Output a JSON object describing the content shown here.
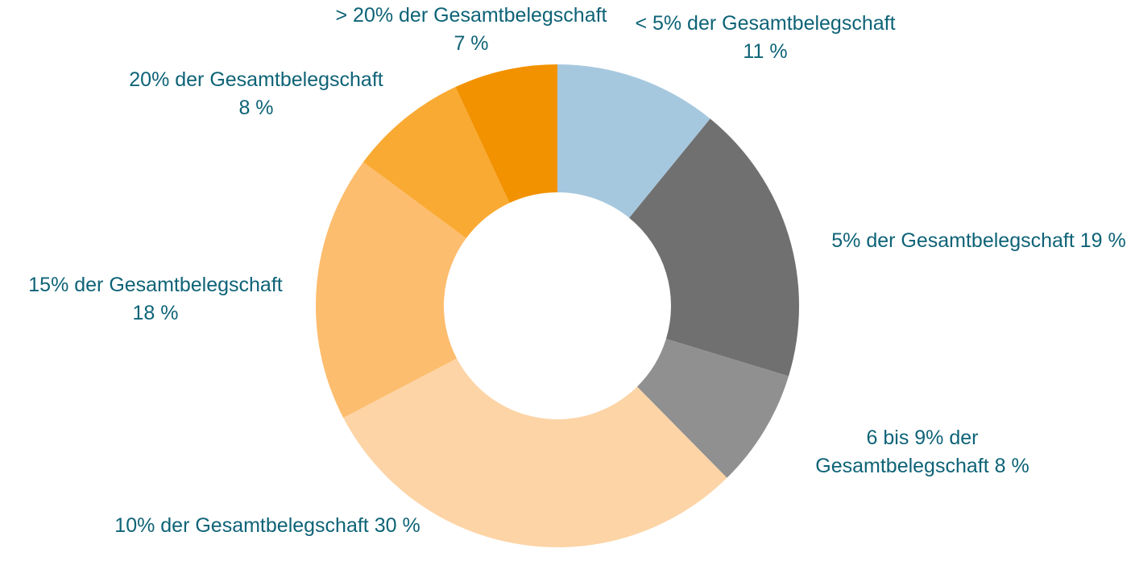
{
  "chart_data": {
    "type": "donut",
    "categories": [
      "< 5% der Gesamtbelegschaft",
      "5% der Gesamtbelegschaft",
      "6 bis 9% der Gesamtbelegschaft",
      "10% der Gesamtbelegschaft",
      "15% der Gesamtbelegschaft",
      "20% der Gesamtbelegschaft",
      "> 20% der Gesamtbelegschaft"
    ],
    "values": [
      11,
      19,
      8,
      30,
      18,
      8,
      7
    ],
    "value_labels": [
      "11 %",
      "19 %",
      "8 %",
      "30 %",
      "18 %",
      "8 %",
      "7 %"
    ],
    "colors": [
      "#a6c8df",
      "#707070",
      "#909090",
      "#fdd4a6",
      "#fdbd6e",
      "#f9aa33",
      "#f29200"
    ]
  }
}
